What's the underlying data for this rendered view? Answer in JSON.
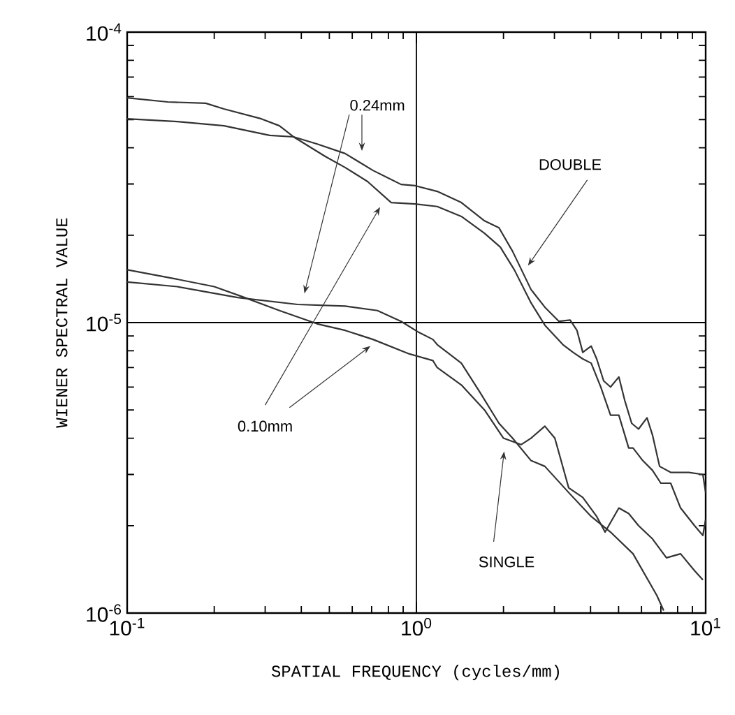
{
  "chart_data": {
    "type": "line",
    "xlabel": "SPATIAL FREQUENCY (cycles/mm)",
    "ylabel": "WIENER SPECTRAL VALUE",
    "log": "xy",
    "grid": true,
    "line_style": "solid",
    "marker": "none",
    "xlim": [
      0.1,
      10
    ],
    "ylim": [
      1e-06,
      0.0001
    ],
    "xticks": [
      {
        "value": 0.1,
        "label": "10$^{-1}$"
      },
      {
        "value": 1,
        "label": "10$^{0}$"
      },
      {
        "value": 10,
        "label": "10$^{1}$"
      }
    ],
    "yticks": [
      {
        "value": 1e-06,
        "label": "10$^{-6}$"
      },
      {
        "value": 1e-05,
        "label": "10$^{-5}$"
      },
      {
        "value": 0.0001,
        "label": "10$^{-4}$"
      }
    ],
    "annotations": [
      "0.24mm",
      "0.10mm",
      "DOUBLE",
      "SINGLE"
    ],
    "series": [
      {
        "color": "#333333",
        "x": [
          0.1,
          0.138,
          0.187,
          0.216,
          0.291,
          0.336,
          0.376,
          0.485,
          0.567,
          0.678,
          0.818,
          0.99,
          1.18,
          1.43,
          1.72,
          1.95,
          2.18,
          2.49,
          2.78,
          3.21,
          3.48,
          3.76,
          4.02,
          4.34,
          4.69,
          5.01,
          5.42,
          5.61,
          6.06,
          6.55,
          7.0,
          7.57,
          8.19,
          9.15,
          9.78,
          10
        ],
        "values": [
          5.94e-05,
          5.75e-05,
          5.69e-05,
          5.44e-05,
          5.03e-05,
          4.76e-05,
          4.36e-05,
          3.73e-05,
          3.42e-05,
          3.06e-05,
          2.59e-05,
          2.56e-05,
          2.51e-05,
          2.32e-05,
          2.03e-05,
          1.82e-05,
          1.52e-05,
          1.17e-05,
          9.8e-06,
          8.4e-06,
          7.9e-06,
          7.5e-06,
          7.25e-06,
          6e-06,
          4.8e-06,
          4.8e-06,
          3.7e-06,
          3.7e-06,
          3.35e-06,
          3.1e-06,
          2.8e-06,
          2.8e-06,
          2.3e-06,
          2e-06,
          1.85e-06,
          2.1e-06
        ]
      },
      {
        "color": "#333333",
        "x": [
          0.1,
          0.149,
          0.216,
          0.311,
          0.376,
          0.454,
          0.567,
          0.708,
          0.885,
          0.99,
          1.18,
          1.43,
          1.72,
          1.93,
          2.15,
          2.49,
          2.78,
          3.11,
          3.4,
          3.59,
          3.76,
          4.02,
          4.2,
          4.44,
          4.69,
          5.01,
          5.25,
          5.55,
          5.86,
          6.27,
          6.55,
          6.93,
          7.57,
          8.75,
          9.78,
          10
        ],
        "values": [
          5.03e-05,
          4.92e-05,
          4.76e-05,
          4.41e-05,
          4.36e-05,
          4.12e-05,
          3.82e-05,
          3.34e-05,
          2.99e-05,
          2.96e-05,
          2.83e-05,
          2.59e-05,
          2.24e-05,
          2.12e-05,
          1.76e-05,
          1.3e-05,
          1.13e-05,
          1.01e-05,
          1.02e-05,
          9.4e-06,
          7.9e-06,
          8.3e-06,
          7.5e-06,
          6.3e-06,
          6e-06,
          6.5e-06,
          5.4e-06,
          4.5e-06,
          4.3e-06,
          4.7e-06,
          4.1e-06,
          3.2e-06,
          3.05e-06,
          3.05e-06,
          3e-06,
          2.6e-06
        ]
      },
      {
        "color": "#333333",
        "x": [
          0.1,
          0.149,
          0.2,
          0.249,
          0.336,
          0.454,
          0.567,
          0.708,
          0.946,
          1.14,
          1.18,
          1.43,
          1.72,
          2.0,
          2.3,
          2.49,
          2.78,
          3.01,
          3.36,
          3.76,
          4.2,
          4.49,
          5.01,
          5.42,
          5.86,
          6.55,
          7.32,
          8.19,
          9.15,
          9.78
        ],
        "values": [
          1.52e-05,
          1.41e-05,
          1.33e-05,
          1.23e-05,
          1.1e-05,
          9.9e-06,
          9.4e-06,
          8.75e-06,
          7.8e-06,
          7.4e-06,
          7e-06,
          6.1e-06,
          5e-06,
          4e-06,
          3.8e-06,
          4e-06,
          4.4e-06,
          4e-06,
          2.7e-06,
          2.5e-06,
          2.15e-06,
          1.9e-06,
          2.3e-06,
          2.2e-06,
          2e-06,
          1.8e-06,
          1.55e-06,
          1.6e-06,
          1.4e-06,
          1.3e-06
        ]
      },
      {
        "color": "#333333",
        "x": [
          0.1,
          0.149,
          0.241,
          0.388,
          0.567,
          0.733,
          0.885,
          1.02,
          1.14,
          1.18,
          1.43,
          1.65,
          1.93,
          2.15,
          2.49,
          2.78,
          3.36,
          4.02,
          4.69,
          5.61,
          6.78,
          7.16
        ],
        "values": [
          1.38e-05,
          1.33e-05,
          1.22e-05,
          1.155e-05,
          1.14e-05,
          1.1e-05,
          1.01e-05,
          9.25e-06,
          8.75e-06,
          8.4e-06,
          7.25e-06,
          5.8e-06,
          4.5e-06,
          4e-06,
          3.35e-06,
          3.2e-06,
          2.6e-06,
          2.15e-06,
          1.9e-06,
          1.6e-06,
          1.15e-06,
          1.02e-06
        ]
      }
    ]
  }
}
